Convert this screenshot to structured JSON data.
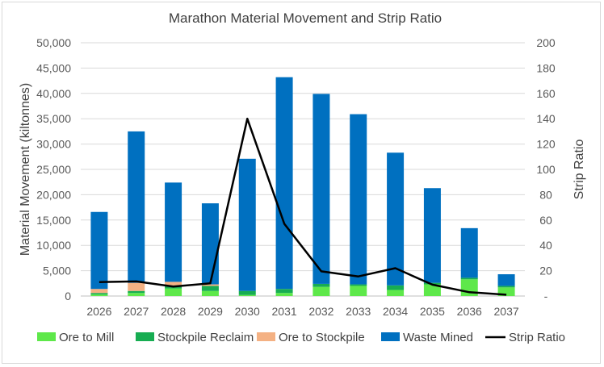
{
  "chart_data": {
    "type": "bar",
    "title": "Marathon Material Movement and Strip Ratio",
    "ylabel": "Material Movement (kiltonnes)",
    "y2label": "Strip Ratio",
    "ylim": [
      0,
      50000
    ],
    "y2lim": [
      0,
      200
    ],
    "yticks": [
      "0",
      "5,000",
      "10,000",
      "15,000",
      "20,000",
      "25,000",
      "30,000",
      "35,000",
      "40,000",
      "45,000",
      "50,000"
    ],
    "y2ticks": [
      "-",
      "20",
      "40",
      "60",
      "80",
      "100",
      "120",
      "140",
      "160",
      "180",
      "200"
    ],
    "categories": [
      "2026",
      "2027",
      "2028",
      "2029",
      "2030",
      "2031",
      "2032",
      "2033",
      "2034",
      "2035",
      "2036",
      "2037"
    ],
    "stacked": true,
    "series": [
      {
        "name": "Ore to Mill",
        "color": "#5ee84a",
        "values": [
          300,
          600,
          1500,
          1000,
          200,
          600,
          1800,
          2000,
          1200,
          2300,
          3300,
          1700
        ]
      },
      {
        "name": "Stockpile Reclaim",
        "color": "#17ad52",
        "values": [
          300,
          400,
          600,
          1000,
          800,
          800,
          600,
          300,
          900,
          300,
          300,
          300
        ]
      },
      {
        "name": "Ore to Stockpile",
        "color": "#f4b183",
        "values": [
          800,
          1600,
          700,
          300,
          0,
          0,
          0,
          0,
          0,
          0,
          0,
          0
        ]
      },
      {
        "name": "Waste Mined",
        "color": "#0070c0",
        "values": [
          15200,
          29900,
          19600,
          16000,
          26100,
          41800,
          37500,
          33600,
          26200,
          18700,
          9800,
          2300
        ]
      }
    ],
    "line_series": {
      "name": "Strip Ratio",
      "color": "#000000",
      "axis": "secondary",
      "values": [
        11,
        11.5,
        7.5,
        10,
        140,
        57,
        19.5,
        15.5,
        22,
        9,
        3,
        1
      ]
    },
    "legend": "bottom"
  }
}
